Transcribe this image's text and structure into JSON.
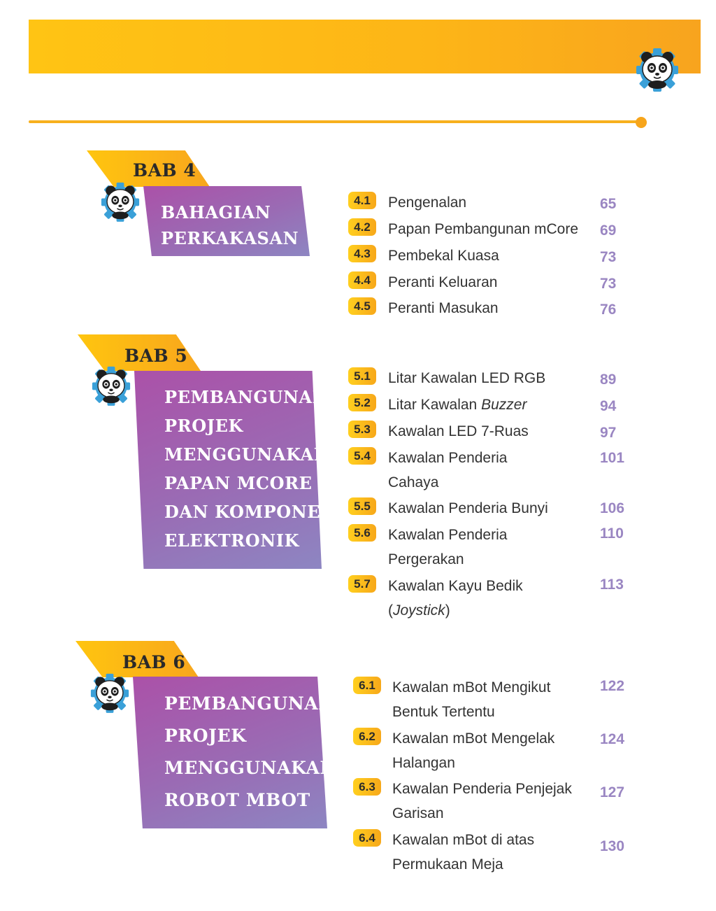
{
  "chapters": [
    {
      "label": "BAB 4",
      "title_lines": [
        "BAHAGIAN",
        "PERKAKASAN"
      ],
      "entries": [
        {
          "num": "4.1",
          "lines": [
            "Pengenalan"
          ],
          "page": "65"
        },
        {
          "num": "4.2",
          "lines": [
            "Papan Pembangunan mCore"
          ],
          "page": "69"
        },
        {
          "num": "4.3",
          "lines": [
            "Pembekal Kuasa"
          ],
          "page": "73"
        },
        {
          "num": "4.4",
          "lines": [
            "Peranti Keluaran"
          ],
          "page": "73"
        },
        {
          "num": "4.5",
          "lines": [
            "Peranti Masukan"
          ],
          "page": "76"
        }
      ]
    },
    {
      "label": "BAB 5",
      "title_lines": [
        "PEMBANGUNAN",
        "PROJEK",
        "MENGGUNAKAN",
        "PAPAN mCORE",
        "DAN KOMPONEN",
        "ELEKTRONIK"
      ],
      "entries": [
        {
          "num": "5.1",
          "lines": [
            "Litar Kawalan LED RGB"
          ],
          "page": "89"
        },
        {
          "num": "5.2",
          "prefix": "Litar Kawalan ",
          "italic": "Buzzer",
          "page": "94"
        },
        {
          "num": "5.3",
          "lines": [
            "Kawalan LED 7-Ruas"
          ],
          "page": "97"
        },
        {
          "num": "5.4",
          "lines": [
            "Kawalan Penderia",
            "Cahaya"
          ],
          "page": "101"
        },
        {
          "num": "5.5",
          "lines": [
            "Kawalan Penderia Bunyi"
          ],
          "page": "106"
        },
        {
          "num": "5.6",
          "lines": [
            "Kawalan Penderia",
            "Pergerakan"
          ],
          "page": "110"
        },
        {
          "num": "5.7",
          "lines": [
            "Kawalan Kayu Bedik"
          ],
          "paren_italic": "Joystick",
          "page": "113"
        }
      ]
    },
    {
      "label": "BAB 6",
      "title_lines": [
        "PEMBANGUNAN",
        "PROJEK",
        "MENGGUNAKAN",
        "ROBOT mBOT"
      ],
      "entries": [
        {
          "num": "6.1",
          "lines": [
            "Kawalan mBot Mengikut",
            "Bentuk Tertentu"
          ],
          "page": "122"
        },
        {
          "num": "6.2",
          "lines": [
            "Kawalan mBot Mengelak",
            "Halangan"
          ],
          "page": "124"
        },
        {
          "num": "6.3",
          "lines": [
            "Kawalan Penderia Penjejak",
            "Garisan"
          ],
          "page": "127"
        },
        {
          "num": "6.4",
          "lines": [
            "Kawalan mBot di atas",
            "Permukaan Meja"
          ],
          "page": "130"
        }
      ]
    }
  ],
  "colors": {
    "accent": "#f8a41e",
    "panel": "#9a6bb4",
    "page_number": "#9a86c2"
  },
  "icons": {
    "mascot": "panda-gear-icon"
  }
}
